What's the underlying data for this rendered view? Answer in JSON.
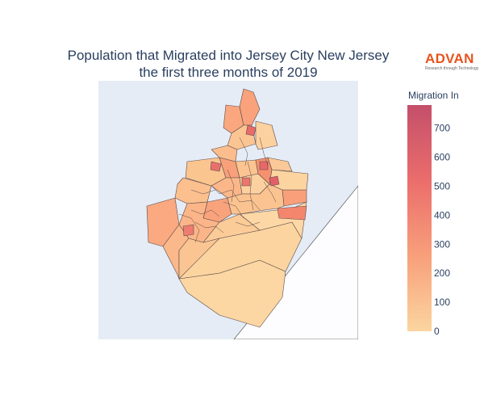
{
  "chart_data": {
    "type": "choropleth",
    "title_lines": [
      "Population that Migrated into Jersey City New Jersey",
      "the first three months of 2019"
    ],
    "colorbar": {
      "title": "Migration In",
      "min": 0,
      "max": 780,
      "ticks": [
        0,
        100,
        200,
        300,
        400,
        500,
        600,
        700
      ],
      "colorscale": [
        "#fbd59f",
        "#f8a07b",
        "#eb6e6c",
        "#c44f6a"
      ]
    },
    "background": {
      "land": "#e5ecf6",
      "water": "#fdfdff"
    }
  },
  "logo": {
    "word": "ADVAN",
    "tagline": "Research through Technology",
    "color": "#e8531d"
  }
}
